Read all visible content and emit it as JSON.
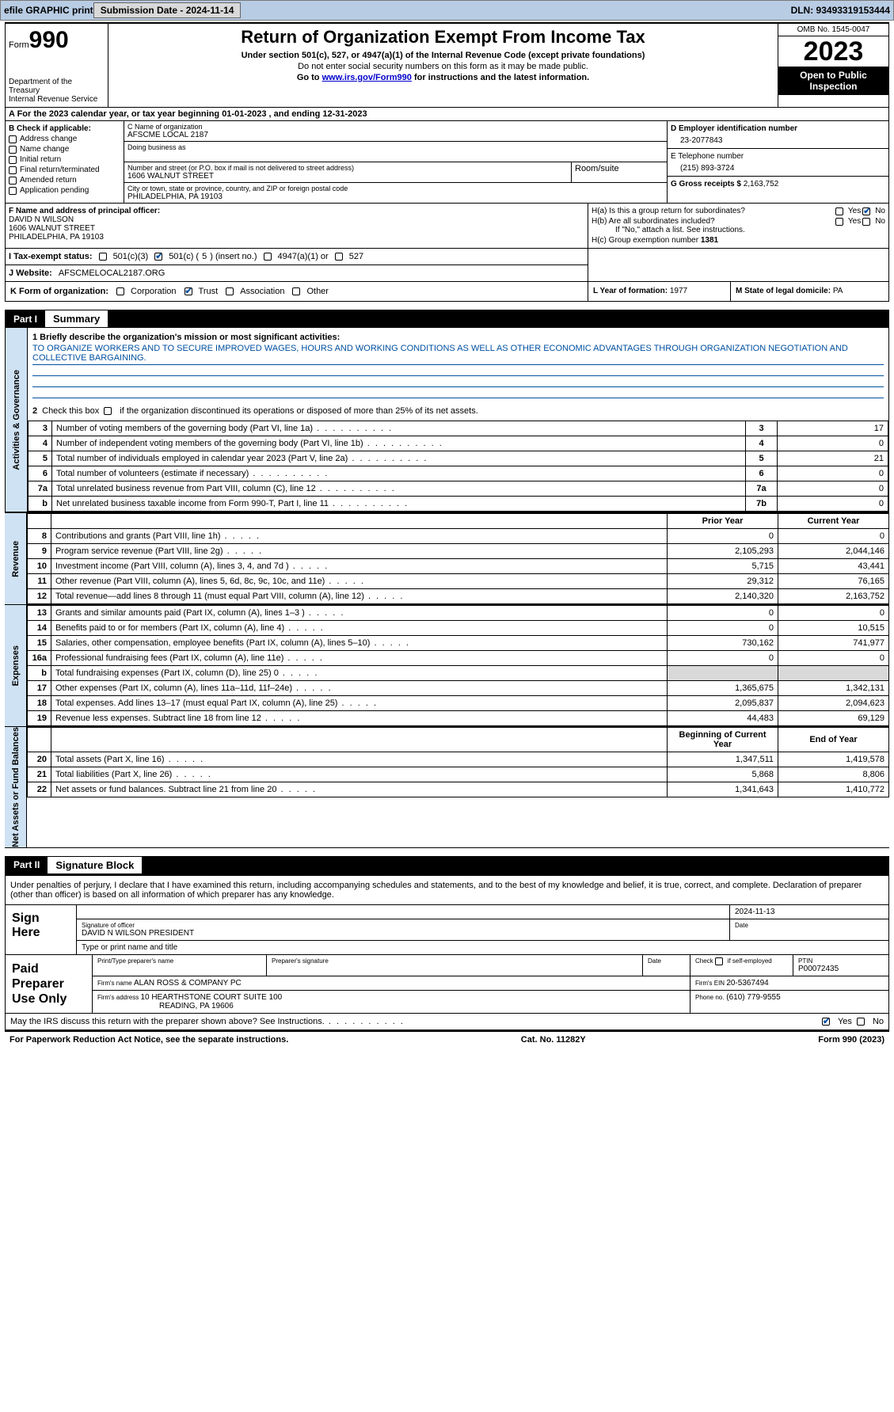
{
  "toolbar": {
    "efile_label": "efile GRAPHIC print",
    "submission_label": "Submission Date - 2024-11-14",
    "dln_label": "DLN: 93493319153444"
  },
  "header": {
    "form_label": "Form",
    "form_no": "990",
    "dept1": "Department of the Treasury",
    "dept2": "Internal Revenue Service",
    "title": "Return of Organization Exempt From Income Tax",
    "sub1": "Under section 501(c), 527, or 4947(a)(1) of the Internal Revenue Code (except private foundations)",
    "sub2": "Do not enter social security numbers on this form as it may be made public.",
    "sub3_pre": "Go to ",
    "sub3_link": "www.irs.gov/Form990",
    "sub3_post": " for instructions and the latest information.",
    "omb": "OMB No. 1545-0047",
    "year": "2023",
    "inspection": "Open to Public Inspection"
  },
  "section_a": "A   For the 2023 calendar year, or tax year beginning 01-01-2023    , and ending 12-31-2023",
  "box_b": {
    "label": "B Check if applicable:",
    "items": [
      "Address change",
      "Name change",
      "Initial return",
      "Final return/terminated",
      "Amended return",
      "Application pending"
    ]
  },
  "box_c": {
    "name_lbl": "C Name of organization",
    "name_val": "AFSCME LOCAL 2187",
    "dba_lbl": "Doing business as",
    "street_lbl": "Number and street (or P.O. box if mail is not delivered to street address)",
    "street_val": "1606 WALNUT STREET",
    "room_lbl": "Room/suite",
    "city_lbl": "City or town, state or province, country, and ZIP or foreign postal code",
    "city_val": "PHILADELPHIA, PA  19103"
  },
  "box_d": {
    "ein_lbl": "D Employer identification number",
    "ein_val": "23-2077843",
    "phone_lbl": "E Telephone number",
    "phone_val": "(215) 893-3724",
    "gross_lbl": "G Gross receipts $",
    "gross_val": "2,163,752"
  },
  "box_f": {
    "lbl": "F  Name and address of principal officer:",
    "name": "DAVID N WILSON",
    "street": "1606 WALNUT STREET",
    "city": "PHILADELPHIA, PA  19103"
  },
  "box_h": {
    "ha": "H(a)  Is this a group return for subordinates?",
    "hb": "H(b)  Are all subordinates included?",
    "hb_note": "If \"No,\" attach a list. See instructions.",
    "hc": "H(c)  Group exemption number ",
    "hc_val": "1381",
    "yes": "Yes",
    "no": "No"
  },
  "box_i": {
    "lbl": "I    Tax-exempt status:",
    "o1": "501(c)(3)",
    "o2_pre": "501(c) (",
    "o2_val": "5",
    "o2_post": ") (insert no.)",
    "o3": "4947(a)(1) or",
    "o4": "527"
  },
  "box_j": {
    "lbl": "J    Website: ",
    "val": "AFSCMELOCAL2187.ORG"
  },
  "box_k": {
    "lbl": "K Form of organization:",
    "o1": "Corporation",
    "o2": "Trust",
    "o3": "Association",
    "o4": "Other"
  },
  "box_l": {
    "lbl": "L Year of formation:",
    "val": "1977"
  },
  "box_m": {
    "lbl": "M State of legal domicile:",
    "val": "PA"
  },
  "part1": {
    "hdr_num": "Part I",
    "hdr_title": "Summary",
    "q1_lbl": "1   Briefly describe the organization's mission or most significant activities:",
    "q1_val": "TO ORGANIZE WORKERS AND TO SECURE IMPROVED WAGES, HOURS AND WORKING CONDITIONS AS WELL AS OTHER ECONOMIC ADVANTAGES THROUGH ORGANIZATION NEGOTIATION AND COLLECTIVE BARGAINING.",
    "q2": "Check this box      if the organization discontinued its operations or disposed of more than 25% of its net assets.",
    "gov_rows": [
      {
        "n": "3",
        "desc": "Number of voting members of the governing body (Part VI, line 1a)",
        "box": "3",
        "val": "17"
      },
      {
        "n": "4",
        "desc": "Number of independent voting members of the governing body (Part VI, line 1b)",
        "box": "4",
        "val": "0"
      },
      {
        "n": "5",
        "desc": "Total number of individuals employed in calendar year 2023 (Part V, line 2a)",
        "box": "5",
        "val": "21"
      },
      {
        "n": "6",
        "desc": "Total number of volunteers (estimate if necessary)",
        "box": "6",
        "val": "0"
      },
      {
        "n": "7a",
        "desc": "Total unrelated business revenue from Part VIII, column (C), line 12",
        "box": "7a",
        "val": "0"
      },
      {
        "n": "b",
        "desc": "Net unrelated business taxable income from Form 990-T, Part I, line 11",
        "box": "7b",
        "val": "0"
      }
    ],
    "py_hdr": "Prior Year",
    "cy_hdr": "Current Year",
    "rev_rows": [
      {
        "n": "8",
        "desc": "Contributions and grants (Part VIII, line 1h)",
        "py": "0",
        "cy": "0"
      },
      {
        "n": "9",
        "desc": "Program service revenue (Part VIII, line 2g)",
        "py": "2,105,293",
        "cy": "2,044,146"
      },
      {
        "n": "10",
        "desc": "Investment income (Part VIII, column (A), lines 3, 4, and 7d )",
        "py": "5,715",
        "cy": "43,441"
      },
      {
        "n": "11",
        "desc": "Other revenue (Part VIII, column (A), lines 5, 6d, 8c, 9c, 10c, and 11e)",
        "py": "29,312",
        "cy": "76,165"
      },
      {
        "n": "12",
        "desc": "Total revenue—add lines 8 through 11 (must equal Part VIII, column (A), line 12)",
        "py": "2,140,320",
        "cy": "2,163,752"
      }
    ],
    "exp_rows": [
      {
        "n": "13",
        "desc": "Grants and similar amounts paid (Part IX, column (A), lines 1–3 )",
        "py": "0",
        "cy": "0"
      },
      {
        "n": "14",
        "desc": "Benefits paid to or for members (Part IX, column (A), line 4)",
        "py": "0",
        "cy": "10,515"
      },
      {
        "n": "15",
        "desc": "Salaries, other compensation, employee benefits (Part IX, column (A), lines 5–10)",
        "py": "730,162",
        "cy": "741,977"
      },
      {
        "n": "16a",
        "desc": "Professional fundraising fees (Part IX, column (A), line 11e)",
        "py": "0",
        "cy": "0"
      },
      {
        "n": "b",
        "desc": "Total fundraising expenses (Part IX, column (D), line 25) 0",
        "py": "shade",
        "cy": "shade"
      },
      {
        "n": "17",
        "desc": "Other expenses (Part IX, column (A), lines 11a–11d, 11f–24e)",
        "py": "1,365,675",
        "cy": "1,342,131"
      },
      {
        "n": "18",
        "desc": "Total expenses. Add lines 13–17 (must equal Part IX, column (A), line 25)",
        "py": "2,095,837",
        "cy": "2,094,623"
      },
      {
        "n": "19",
        "desc": "Revenue less expenses. Subtract line 18 from line 12",
        "py": "44,483",
        "cy": "69,129"
      }
    ],
    "na_hdr_l": "Beginning of Current Year",
    "na_hdr_r": "End of Year",
    "na_rows": [
      {
        "n": "20",
        "desc": "Total assets (Part X, line 16)",
        "py": "1,347,511",
        "cy": "1,419,578"
      },
      {
        "n": "21",
        "desc": "Total liabilities (Part X, line 26)",
        "py": "5,868",
        "cy": "8,806"
      },
      {
        "n": "22",
        "desc": "Net assets or fund balances. Subtract line 21 from line 20",
        "py": "1,341,643",
        "cy": "1,410,772"
      }
    ],
    "tab_gov": "Activities & Governance",
    "tab_rev": "Revenue",
    "tab_exp": "Expenses",
    "tab_na": "Net Assets or Fund Balances"
  },
  "part2": {
    "hdr_num": "Part II",
    "hdr_title": "Signature Block",
    "intro": "Under penalties of perjury, I declare that I have examined this return, including accompanying schedules and statements, and to the best of my knowledge and belief, it is true, correct, and complete. Declaration of preparer (other than officer) is based on all information of which preparer has any knowledge.",
    "sign_here": "Sign Here",
    "sig_of_officer": "Signature of officer",
    "officer_name": "DAVID N WILSON  PRESIDENT",
    "officer_title_lbl": "Type or print name and title",
    "date_lbl": "Date",
    "date_val": "2024-11-13",
    "paid_lbl": "Paid Preparer Use Only",
    "prep_name_lbl": "Print/Type preparer's name",
    "prep_sig_lbl": "Preparer's signature",
    "self_emp": "Check       if self-employed",
    "ptin_lbl": "PTIN",
    "ptin_val": "P00072435",
    "firm_name_lbl": "Firm's name   ",
    "firm_name_val": "ALAN ROSS & COMPANY PC",
    "firm_ein_lbl": "Firm's EIN ",
    "firm_ein_val": "20-5367494",
    "firm_addr_lbl": "Firm's address ",
    "firm_addr_val1": "10 HEARTHSTONE COURT SUITE 100",
    "firm_addr_val2": "READING, PA  19606",
    "phone_lbl": "Phone no.",
    "phone_val": "(610) 779-9555"
  },
  "footer": {
    "discuss": "May the IRS discuss this return with the preparer shown above? See Instructions.",
    "yes": "Yes",
    "no": "No",
    "paperwork": "For Paperwork Reduction Act Notice, see the separate instructions.",
    "catno": "Cat. No. 11282Y",
    "formno": "Form 990 (2023)"
  }
}
